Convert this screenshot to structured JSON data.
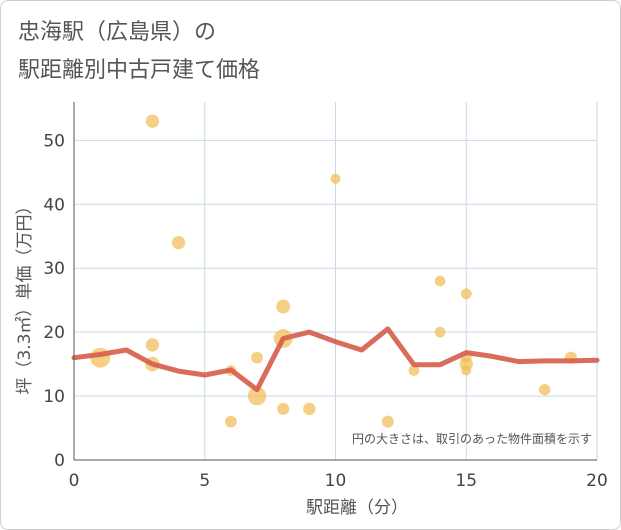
{
  "header": {
    "title_line1": "忠海駅（広島県）の",
    "title_line2": "駅距離別中古戸建て価格"
  },
  "chart_data": {
    "type": "scatter",
    "title": "忠海駅（広島県）の駅距離別中古戸建て価格",
    "xlabel": "駅距離（分）",
    "ylabel": "坪（3.3㎡）単価（万円）",
    "xlim": [
      0,
      20
    ],
    "ylim": [
      0,
      56
    ],
    "xticks": [
      0,
      5,
      10,
      15,
      20
    ],
    "yticks": [
      0,
      10,
      20,
      30,
      40,
      50
    ],
    "grid": true,
    "note": "円の大きさは、取引のあった物件面積を示す",
    "colors": {
      "bubble": "#f3bc57",
      "line": "#d6604d",
      "grid": "#c9d9e6",
      "axis": "#555555"
    },
    "bubbles": [
      {
        "x": 1,
        "y": 16,
        "size": 5
      },
      {
        "x": 3,
        "y": 53,
        "size": 2
      },
      {
        "x": 3,
        "y": 18,
        "size": 2
      },
      {
        "x": 3,
        "y": 15,
        "size": 2.4
      },
      {
        "x": 4,
        "y": 34,
        "size": 2
      },
      {
        "x": 6,
        "y": 14,
        "size": 1.2
      },
      {
        "x": 6,
        "y": 6,
        "size": 1.5
      },
      {
        "x": 7,
        "y": 16,
        "size": 1.5
      },
      {
        "x": 7,
        "y": 10,
        "size": 4.2
      },
      {
        "x": 8,
        "y": 24,
        "size": 2.2
      },
      {
        "x": 8,
        "y": 19,
        "size": 4.4
      },
      {
        "x": 8,
        "y": 8,
        "size": 1.6
      },
      {
        "x": 9,
        "y": 8,
        "size": 1.7
      },
      {
        "x": 10,
        "y": 44,
        "size": 1
      },
      {
        "x": 12,
        "y": 6,
        "size": 1.6
      },
      {
        "x": 13,
        "y": 14,
        "size": 1.2
      },
      {
        "x": 14,
        "y": 28,
        "size": 1.2
      },
      {
        "x": 14,
        "y": 20,
        "size": 1.2
      },
      {
        "x": 15,
        "y": 26,
        "size": 1.2
      },
      {
        "x": 15,
        "y": 16,
        "size": 1.2
      },
      {
        "x": 15,
        "y": 15,
        "size": 2
      },
      {
        "x": 15,
        "y": 14,
        "size": 1
      },
      {
        "x": 18,
        "y": 11,
        "size": 1.4
      },
      {
        "x": 19,
        "y": 16,
        "size": 1.6
      }
    ],
    "line": {
      "x": [
        0,
        1,
        2,
        3,
        4,
        5,
        6,
        7,
        8,
        9,
        10,
        11,
        12,
        13,
        14,
        15,
        16,
        17,
        18,
        19,
        20
      ],
      "y": [
        16,
        16.5,
        17.2,
        15,
        13.9,
        13.3,
        14.1,
        11,
        19,
        20,
        18.5,
        17.2,
        20.5,
        14.9,
        14.9,
        16.8,
        16.2,
        15.4,
        15.5,
        15.5,
        15.6
      ]
    }
  }
}
